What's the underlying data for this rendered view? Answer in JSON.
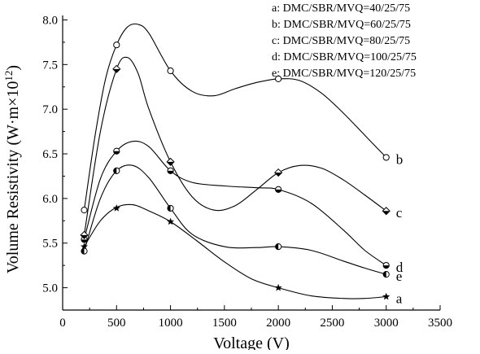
{
  "chart_data": {
    "type": "line",
    "xlabel": "Voltage (V)",
    "ylabel_main": "Volume Resistivity (W·m×10",
    "ylabel_sup": "12",
    "ylabel_end": ")",
    "xlim": [
      0,
      3500
    ],
    "ylim": [
      4.75,
      8.05
    ],
    "x_ticks": [
      0,
      500,
      1000,
      1500,
      2000,
      2500,
      3000,
      3500
    ],
    "x_tick_labels": [
      "0",
      "500",
      "1000",
      "1500",
      "2000",
      "2500",
      "3000",
      "3500"
    ],
    "y_ticks": [
      5.0,
      5.5,
      6.0,
      6.5,
      7.0,
      7.5,
      8.0
    ],
    "y_tick_labels": [
      "5.0",
      "5.5",
      "6.0",
      "6.5",
      "7.0",
      "7.5",
      "8.0"
    ],
    "grid": false,
    "legend_position": "top-right",
    "series": [
      {
        "name": "a: DMC/SBR/MVQ=40/25/75",
        "end_label": "a",
        "marker": "star",
        "x": [
          200,
          500,
          1000,
          2000,
          3000
        ],
        "y": [
          5.46,
          5.89,
          5.74,
          5.0,
          4.9
        ],
        "curve_x": [
          200,
          350,
          500,
          650,
          800,
          1000,
          1250,
          1500,
          1750,
          2000,
          2300,
          2600,
          2800,
          3000
        ],
        "curve_y": [
          5.46,
          5.75,
          5.9,
          5.93,
          5.86,
          5.74,
          5.52,
          5.29,
          5.1,
          5.0,
          4.91,
          4.88,
          4.88,
          4.9
        ]
      },
      {
        "name": "b: DMC/SBR/MVQ=60/25/75",
        "end_label": "e",
        "marker": "circle-left-half",
        "x": [
          200,
          500,
          1000,
          2000,
          3000
        ],
        "y": [
          5.41,
          6.31,
          5.89,
          5.46,
          5.15
        ],
        "curve_x": [
          200,
          350,
          500,
          650,
          800,
          1000,
          1200,
          1500,
          1800,
          2000,
          2300,
          2600,
          2800,
          3000
        ],
        "curve_y": [
          5.41,
          6.0,
          6.31,
          6.37,
          6.23,
          5.89,
          5.6,
          5.46,
          5.45,
          5.46,
          5.42,
          5.3,
          5.22,
          5.15
        ]
      },
      {
        "name": "c: DMC/SBR/MVQ=80/25/75",
        "end_label": "d",
        "marker": "circle-bottom-half",
        "x": [
          200,
          500,
          1000,
          2000,
          3000
        ],
        "y": [
          5.54,
          6.53,
          6.31,
          6.1,
          5.25
        ],
        "curve_x": [
          200,
          350,
          500,
          650,
          800,
          1000,
          1200,
          1500,
          1800,
          2000,
          2300,
          2600,
          2800,
          3000
        ],
        "curve_y": [
          5.54,
          6.22,
          6.53,
          6.64,
          6.58,
          6.31,
          6.18,
          6.14,
          6.12,
          6.1,
          5.95,
          5.65,
          5.42,
          5.25
        ]
      },
      {
        "name": "d: DMC/SBR/MVQ=100/25/75",
        "end_label": "c",
        "marker": "diamond-half",
        "x": [
          200,
          500,
          1000,
          2000,
          3000
        ],
        "y": [
          5.59,
          7.45,
          6.41,
          6.29,
          5.86
        ],
        "curve_x": [
          200,
          350,
          500,
          600,
          700,
          800,
          1000,
          1200,
          1400,
          1600,
          1800,
          2000,
          2200,
          2400,
          2600,
          2800,
          3000
        ],
        "curve_y": [
          5.59,
          6.75,
          7.45,
          7.58,
          7.4,
          7.0,
          6.41,
          6.02,
          5.87,
          5.92,
          6.1,
          6.29,
          6.37,
          6.34,
          6.21,
          6.04,
          5.86
        ]
      },
      {
        "name": "e: DMC/SBR/MVQ=120/25/75",
        "end_label": "b",
        "marker": "circle",
        "x": [
          200,
          500,
          1000,
          2000,
          3000
        ],
        "y": [
          5.87,
          7.72,
          7.43,
          7.34,
          6.46
        ],
        "curve_x": [
          200,
          300,
          400,
          500,
          600,
          700,
          800,
          1000,
          1200,
          1400,
          1600,
          1800,
          2000,
          2200,
          2400,
          2600,
          2800,
          3000
        ],
        "curve_y": [
          5.87,
          6.7,
          7.35,
          7.72,
          7.92,
          7.95,
          7.85,
          7.43,
          7.2,
          7.15,
          7.23,
          7.3,
          7.34,
          7.32,
          7.18,
          6.96,
          6.71,
          6.46
        ]
      }
    ]
  }
}
